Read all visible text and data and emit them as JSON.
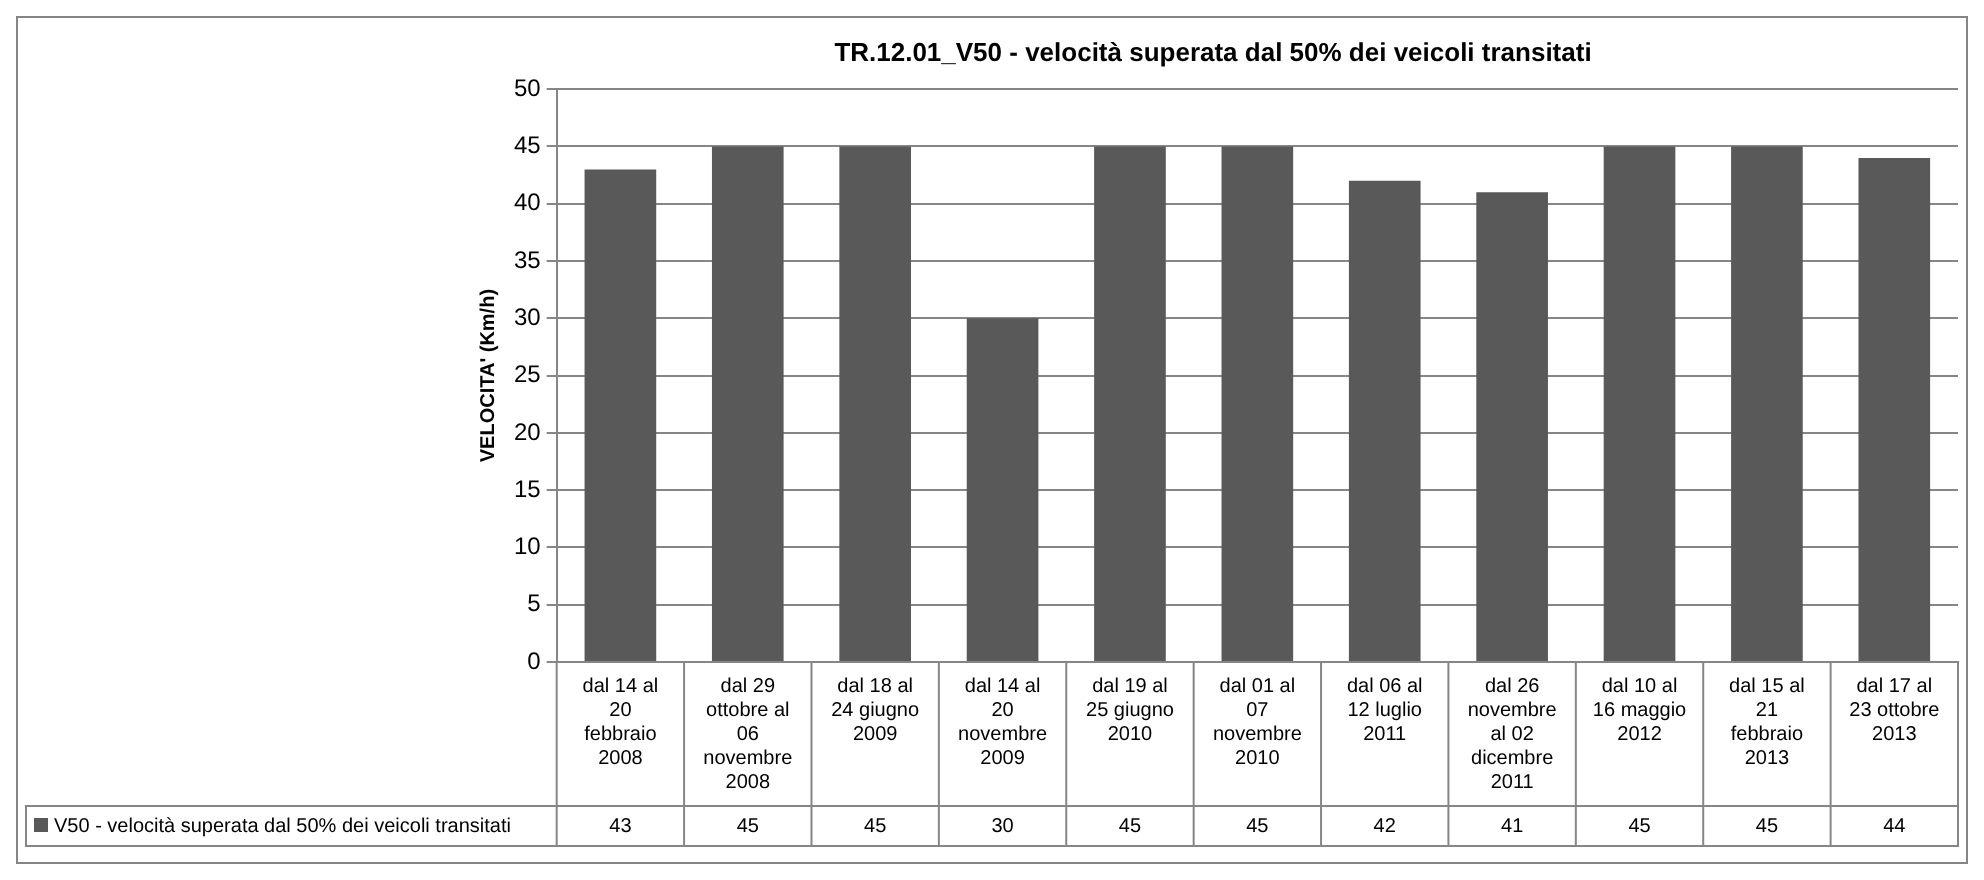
{
  "chart_data": {
    "type": "bar",
    "title": "TR.12.01_V50 - velocità superata dal 50% dei veicoli transitati",
    "ylabel": "VELOCITA' (Km/h)",
    "categories": [
      "dal 14 al 20 febbraio 2008",
      "dal 29 ottobre al 06 novembre 2008",
      "dal 18 al 24 giugno 2009",
      "dal 14 al 20 novembre 2009",
      "dal 19 al 25 giugno 2010",
      "dal 01 al 07 novembre 2010",
      "dal 06 al 12 luglio 2011",
      "dal 26 novembre al 02 dicembre 2011",
      "dal 10 al 16 maggio 2012",
      "dal 15 al 21 febbraio 2013",
      "dal 17 al 23 ottobre 2013"
    ],
    "series": [
      {
        "name": "V50 - velocità superata dal 50% dei veicoli transitati",
        "color": "#595959",
        "values": [
          43,
          45,
          45,
          30,
          45,
          45,
          42,
          41,
          45,
          45,
          44
        ]
      }
    ],
    "ylim": [
      0,
      50
    ],
    "yticks": [
      0,
      5,
      10,
      15,
      20,
      25,
      30,
      35,
      40,
      45,
      50
    ],
    "grid": "y",
    "data_labels": true
  }
}
